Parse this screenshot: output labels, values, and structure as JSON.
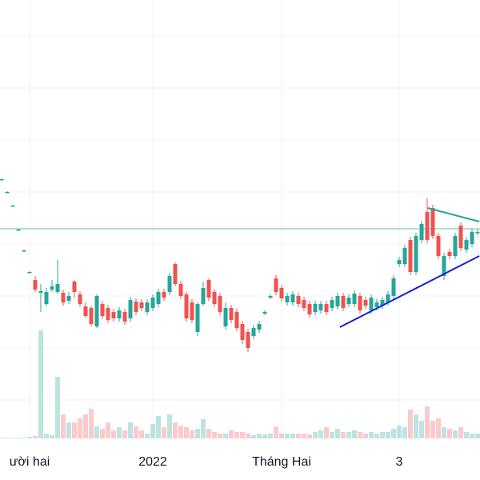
{
  "chart_data": {
    "type": "candlestick",
    "categories": [
      null,
      null,
      null,
      null,
      null,
      "ười hai",
      null,
      null,
      null,
      null,
      null,
      null,
      null,
      null,
      null,
      null,
      null,
      null,
      null,
      null,
      null,
      null,
      null,
      null,
      null,
      null,
      null,
      "2022",
      null,
      null,
      null,
      null,
      null,
      null,
      null,
      null,
      null,
      null,
      null,
      null,
      null,
      null,
      null,
      null,
      null,
      null,
      null,
      null,
      null,
      null,
      "Tháng Hai",
      null,
      null,
      null,
      null,
      null,
      null,
      null,
      null,
      null,
      null,
      null,
      null,
      null,
      null,
      null,
      null,
      null,
      null,
      null,
      null,
      "3",
      null,
      null,
      null,
      null,
      null,
      null,
      null,
      null,
      null,
      null,
      null,
      null,
      null,
      null
    ],
    "open": [
      37.6,
      36,
      34.3,
      31.3,
      28.7,
      26,
      25,
      23.4,
      22,
      23.8,
      23.5,
      23.4,
      22.4,
      24.8,
      23.2,
      21.7,
      21.5,
      19.2,
      22,
      21.5,
      21,
      20.2,
      21,
      20.2,
      22.3,
      22.2,
      21,
      21.5,
      22,
      23.5,
      23.5,
      27,
      24.5,
      23.2,
      22.2,
      18.5,
      22,
      25,
      23.5,
      23,
      19.2,
      21.5,
      21,
      19.5,
      18.5,
      18,
      18.8,
      20.8,
      22.8,
      25.2,
      24,
      22.2,
      22.2,
      23,
      22.5,
      22,
      21,
      21.2,
      22,
      21.5,
      21.7,
      23,
      22,
      22,
      23,
      22.5,
      21.2,
      21.6,
      21.8,
      22.2,
      23,
      27,
      27,
      30,
      26,
      30,
      33.5,
      34,
      30.5,
      25.5,
      28.5,
      28,
      31.8,
      28.8,
      29.5,
      31
    ],
    "high": [
      37.7,
      36.1,
      34.4,
      31.4,
      28.8,
      26.1,
      25.5,
      24.5,
      24,
      25,
      27.5,
      23.8,
      23.5,
      25,
      23.6,
      22.2,
      21.8,
      23.2,
      22.4,
      21.9,
      21.4,
      21.6,
      21.4,
      22.9,
      22.7,
      22.6,
      22.6,
      23.2,
      23.9,
      23.9,
      25.9,
      27.2,
      24.9,
      23.5,
      22.6,
      22.2,
      24.8,
      25.2,
      23.9,
      23.4,
      22.2,
      21.9,
      21.4,
      19.9,
      18.9,
      19.4,
      19.9,
      21.2,
      23.2,
      25.6,
      24.4,
      23.4,
      23.6,
      23.4,
      22.9,
      22.4,
      22.4,
      22.4,
      22.4,
      22.9,
      23.4,
      23.4,
      23.2,
      23.7,
      23.4,
      22.9,
      23.2,
      22.6,
      22.9,
      23.6,
      25.6,
      27.9,
      29.4,
      30.4,
      30.9,
      32.4,
      35.2,
      34.4,
      30.9,
      28.4,
      28.9,
      30.9,
      32.2,
      30.4,
      31.4,
      31.4
    ],
    "low": [
      37.5,
      35.9,
      34.2,
      31.2,
      28.6,
      25.9,
      23.5,
      21,
      21.7,
      23.5,
      23.3,
      21.8,
      22,
      22.8,
      21.6,
      20.3,
      19.2,
      19,
      20.1,
      19.6,
      19.8,
      19.8,
      19.4,
      19.8,
      20.6,
      21.1,
      20.6,
      21.1,
      21.6,
      22.4,
      23.1,
      24.2,
      22.6,
      19.8,
      19.6,
      18,
      21.8,
      22.4,
      21.6,
      20.6,
      18.8,
      19.6,
      18.6,
      17,
      16,
      17.6,
      18.4,
      20.6,
      22.6,
      23.1,
      22.3,
      21.8,
      21.8,
      21.6,
      21.1,
      20.3,
      20.6,
      20.8,
      20.6,
      21.1,
      21.3,
      21.1,
      21.6,
      21.6,
      20.8,
      21.4,
      20.8,
      21.2,
      21.4,
      21.8,
      22.6,
      26.6,
      26.6,
      25.6,
      25.6,
      29.6,
      29.6,
      30.1,
      27.6,
      25,
      27.6,
      27.6,
      28.6,
      28.4,
      29.1,
      30.6
    ],
    "close": [
      37.6,
      36,
      34.3,
      31.3,
      28.7,
      26,
      23.8,
      23.6,
      23.5,
      24.2,
      24.5,
      22.2,
      23,
      23.5,
      22,
      20.5,
      19.5,
      23,
      20.5,
      20,
      20.2,
      21.2,
      19.8,
      22.5,
      21,
      21.5,
      22.2,
      22.8,
      23.5,
      22.8,
      25.5,
      24.5,
      23,
      20.2,
      20,
      22,
      24,
      22.8,
      22,
      21,
      21.5,
      20,
      19,
      17.5,
      16.5,
      19,
      19.5,
      21,
      23,
      23.5,
      22.7,
      23,
      23.2,
      22,
      21.5,
      20.7,
      22,
      22,
      21,
      22.5,
      23,
      21.5,
      22.8,
      23.3,
      21.2,
      21.8,
      22.8,
      22.2,
      22.5,
      23.2,
      25.2,
      27.5,
      29,
      26,
      30.5,
      32,
      30,
      30.5,
      28,
      28,
      28,
      30.5,
      29,
      30,
      31,
      31
    ],
    "volume": [
      1,
      1,
      1,
      1,
      1,
      2,
      3,
      135,
      6,
      4,
      77,
      30,
      20,
      20,
      25,
      30,
      37,
      15,
      12,
      20,
      10,
      14,
      10,
      20,
      15,
      10,
      6,
      18,
      28,
      14,
      30,
      20,
      16,
      14,
      10,
      12,
      24,
      12,
      8,
      6,
      6,
      10,
      8,
      8,
      6,
      4,
      6,
      5,
      6,
      15,
      6,
      6,
      6,
      6,
      6,
      5,
      8,
      10,
      14,
      8,
      12,
      8,
      8,
      10,
      8,
      6,
      8,
      6,
      8,
      8,
      12,
      16,
      14,
      36,
      30,
      22,
      40,
      22,
      25,
      14,
      12,
      10,
      14,
      8,
      6,
      6
    ],
    "up_color": "#26a69a",
    "down_color": "#ef5350",
    "ylim": [
      4,
      60
    ],
    "volume_lim": [
      0,
      150
    ],
    "grid_y": [
      55.5,
      49,
      42.5,
      36,
      29.5,
      23,
      16.5,
      10
    ],
    "price_line": {
      "value": 31.4,
      "color": "#26a69a"
    },
    "trend_lines": [
      {
        "color": "#1a1ae0",
        "points": [
          [
            60.4,
            19.1
          ],
          [
            85.3,
            28
          ]
        ]
      },
      {
        "color": "#26a69a",
        "points": [
          [
            76.1,
            34
          ],
          [
            85.3,
            32.3
          ]
        ]
      }
    ]
  }
}
